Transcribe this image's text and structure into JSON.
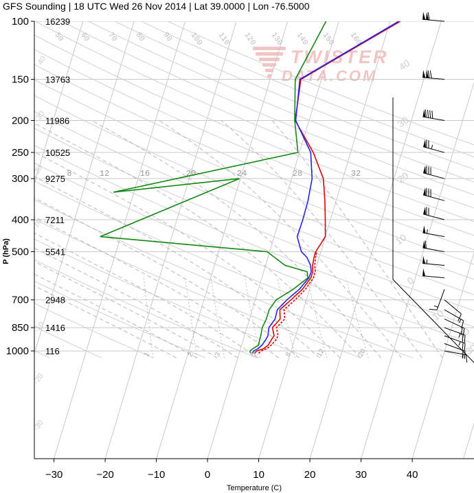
{
  "title": "GFS Sounding | 18 UTC Wed 26 Nov 2014 | Lat 39.0000 | Lon -76.5000",
  "watermark": {
    "line1": "TWISTER",
    "line2": "DATA.COM"
  },
  "chart_data": {
    "type": "line",
    "xlabel": "Temperature (C)",
    "ylabel": "P (hPa)",
    "xlim": [
      -34,
      48
    ],
    "ylim": [
      1050,
      100
    ],
    "y_scale": "log",
    "grid": true,
    "x_ticks": [
      -30,
      -20,
      -10,
      0,
      10,
      20,
      30,
      40
    ],
    "pressure_levels": [
      {
        "p": 100,
        "label": "100",
        "height": "16239"
      },
      {
        "p": 150,
        "label": "150",
        "height": "13763"
      },
      {
        "p": 200,
        "label": "200",
        "height": "11986"
      },
      {
        "p": 250,
        "label": "250",
        "height": "10525"
      },
      {
        "p": 300,
        "label": "300",
        "height": "9275"
      },
      {
        "p": 400,
        "label": "400",
        "height": "7211"
      },
      {
        "p": 500,
        "label": "500",
        "height": "5541"
      },
      {
        "p": 700,
        "label": "700",
        "height": "2948"
      },
      {
        "p": 850,
        "label": "850",
        "height": "1416"
      },
      {
        "p": 1000,
        "label": "1000",
        "height": "116"
      }
    ],
    "isotherm_labels": [
      "-40",
      "-30",
      "-20",
      "-10",
      "0",
      "10",
      "20",
      "30"
    ],
    "theta_labels": [
      "50",
      "60",
      "70",
      "80",
      "90",
      "100",
      "110",
      "120",
      "130",
      "140",
      "150",
      "160"
    ],
    "theta_e_labels": [
      "40",
      "30",
      "20",
      "10",
      "0",
      "-10",
      "-20",
      "-30"
    ],
    "mixing_ratio_labels": [
      "1",
      "2",
      "3",
      "5",
      "8",
      "12",
      "20"
    ],
    "wetbulb_labels": [
      "8",
      "12",
      "16",
      "20",
      "24",
      "28",
      "32"
    ],
    "series": [
      {
        "name": "Temperature",
        "color": "#dd0000",
        "points": [
          [
            1016,
            3.0
          ],
          [
            1000,
            3.3
          ],
          [
            985,
            4.5
          ],
          [
            960,
            5.2
          ],
          [
            925,
            5.5
          ],
          [
            900,
            5.8
          ],
          [
            850,
            5.0
          ],
          [
            800,
            6.0
          ],
          [
            750,
            5.4
          ],
          [
            700,
            7.0
          ],
          [
            650,
            8.6
          ],
          [
            600,
            9.6
          ],
          [
            575,
            9.6
          ],
          [
            550,
            9.2
          ],
          [
            520,
            9.0
          ],
          [
            500,
            9.0
          ],
          [
            450,
            10.0
          ],
          [
            400,
            9.0
          ],
          [
            350,
            7.8
          ],
          [
            300,
            6.2
          ],
          [
            250,
            2.7
          ],
          [
            200,
            -2.7
          ],
          [
            150,
            -4.0
          ],
          [
            100,
            12.0
          ]
        ]
      },
      {
        "name": "Virtual Temperature",
        "color": "#dd0000",
        "dashed": true,
        "points": [
          [
            1016,
            3.8
          ],
          [
            1000,
            4.2
          ],
          [
            985,
            5.1
          ],
          [
            960,
            5.8
          ],
          [
            925,
            6.4
          ],
          [
            900,
            6.6
          ],
          [
            850,
            5.8
          ],
          [
            800,
            6.9
          ],
          [
            750,
            6.2
          ],
          [
            700,
            7.8
          ],
          [
            650,
            9.2
          ],
          [
            600,
            10.1
          ],
          [
            575,
            10.1
          ],
          [
            550,
            9.6
          ],
          [
            520,
            9.3
          ],
          [
            500,
            9.2
          ]
        ]
      },
      {
        "name": "Wet-bulb Temperature",
        "color": "#2222ee",
        "points": [
          [
            1016,
            2.6
          ],
          [
            1000,
            2.7
          ],
          [
            985,
            3.4
          ],
          [
            960,
            4.0
          ],
          [
            925,
            4.4
          ],
          [
            900,
            4.6
          ],
          [
            850,
            4.3
          ],
          [
            800,
            5.0
          ],
          [
            750,
            4.9
          ],
          [
            700,
            6.2
          ],
          [
            650,
            8.0
          ],
          [
            600,
            9.2
          ],
          [
            575,
            9.3
          ],
          [
            550,
            8.8
          ],
          [
            520,
            7.6
          ],
          [
            500,
            6.2
          ],
          [
            450,
            4.5
          ],
          [
            400,
            4.6
          ],
          [
            350,
            4.5
          ],
          [
            300,
            4.0
          ],
          [
            250,
            2.2
          ],
          [
            200,
            -2.6
          ],
          [
            150,
            -4.2
          ],
          [
            100,
            11.7
          ]
        ]
      },
      {
        "name": "Dewpoint",
        "color": "#118811",
        "points": [
          [
            1016,
            2.2
          ],
          [
            1000,
            2.0
          ],
          [
            985,
            2.4
          ],
          [
            960,
            3.3
          ],
          [
            925,
            3.2
          ],
          [
            900,
            3.2
          ],
          [
            850,
            3.0
          ],
          [
            800,
            3.3
          ],
          [
            750,
            3.3
          ],
          [
            700,
            4.1
          ],
          [
            650,
            6.8
          ],
          [
            600,
            9.0
          ],
          [
            575,
            8.5
          ],
          [
            550,
            3.8
          ],
          [
            500,
            -0.5
          ],
          [
            450,
            -34
          ],
          [
            300,
            -10.2
          ],
          [
            330,
            -34
          ],
          [
            250,
            -0.3
          ],
          [
            200,
            -2.8
          ],
          [
            150,
            -5.1
          ],
          [
            100,
            -2.5
          ]
        ]
      }
    ]
  },
  "wind_barbs": [
    {
      "p": 100,
      "dir": 275,
      "speed": 110
    },
    {
      "p": 150,
      "dir": 275,
      "speed": 120
    },
    {
      "p": 200,
      "dir": 280,
      "speed": 90
    },
    {
      "p": 250,
      "dir": 285,
      "speed": 75
    },
    {
      "p": 300,
      "dir": 285,
      "speed": 80
    },
    {
      "p": 350,
      "dir": 285,
      "speed": 80
    },
    {
      "p": 400,
      "dir": 285,
      "speed": 70
    },
    {
      "p": 450,
      "dir": 280,
      "speed": 55
    },
    {
      "p": 500,
      "dir": 280,
      "speed": 60
    },
    {
      "p": 550,
      "dir": 275,
      "speed": 55
    },
    {
      "p": 600,
      "dir": 275,
      "speed": 50
    },
    {
      "p": 650,
      "dir": 200,
      "speed": 15
    },
    {
      "p": 700,
      "dir": 130,
      "speed": 10
    },
    {
      "p": 750,
      "dir": 120,
      "speed": 15
    },
    {
      "p": 800,
      "dir": 115,
      "speed": 20
    },
    {
      "p": 850,
      "dir": 110,
      "speed": 25
    },
    {
      "p": 900,
      "dir": 110,
      "speed": 25
    },
    {
      "p": 950,
      "dir": 110,
      "speed": 20
    },
    {
      "p": 1000,
      "dir": 100,
      "speed": 15
    }
  ]
}
